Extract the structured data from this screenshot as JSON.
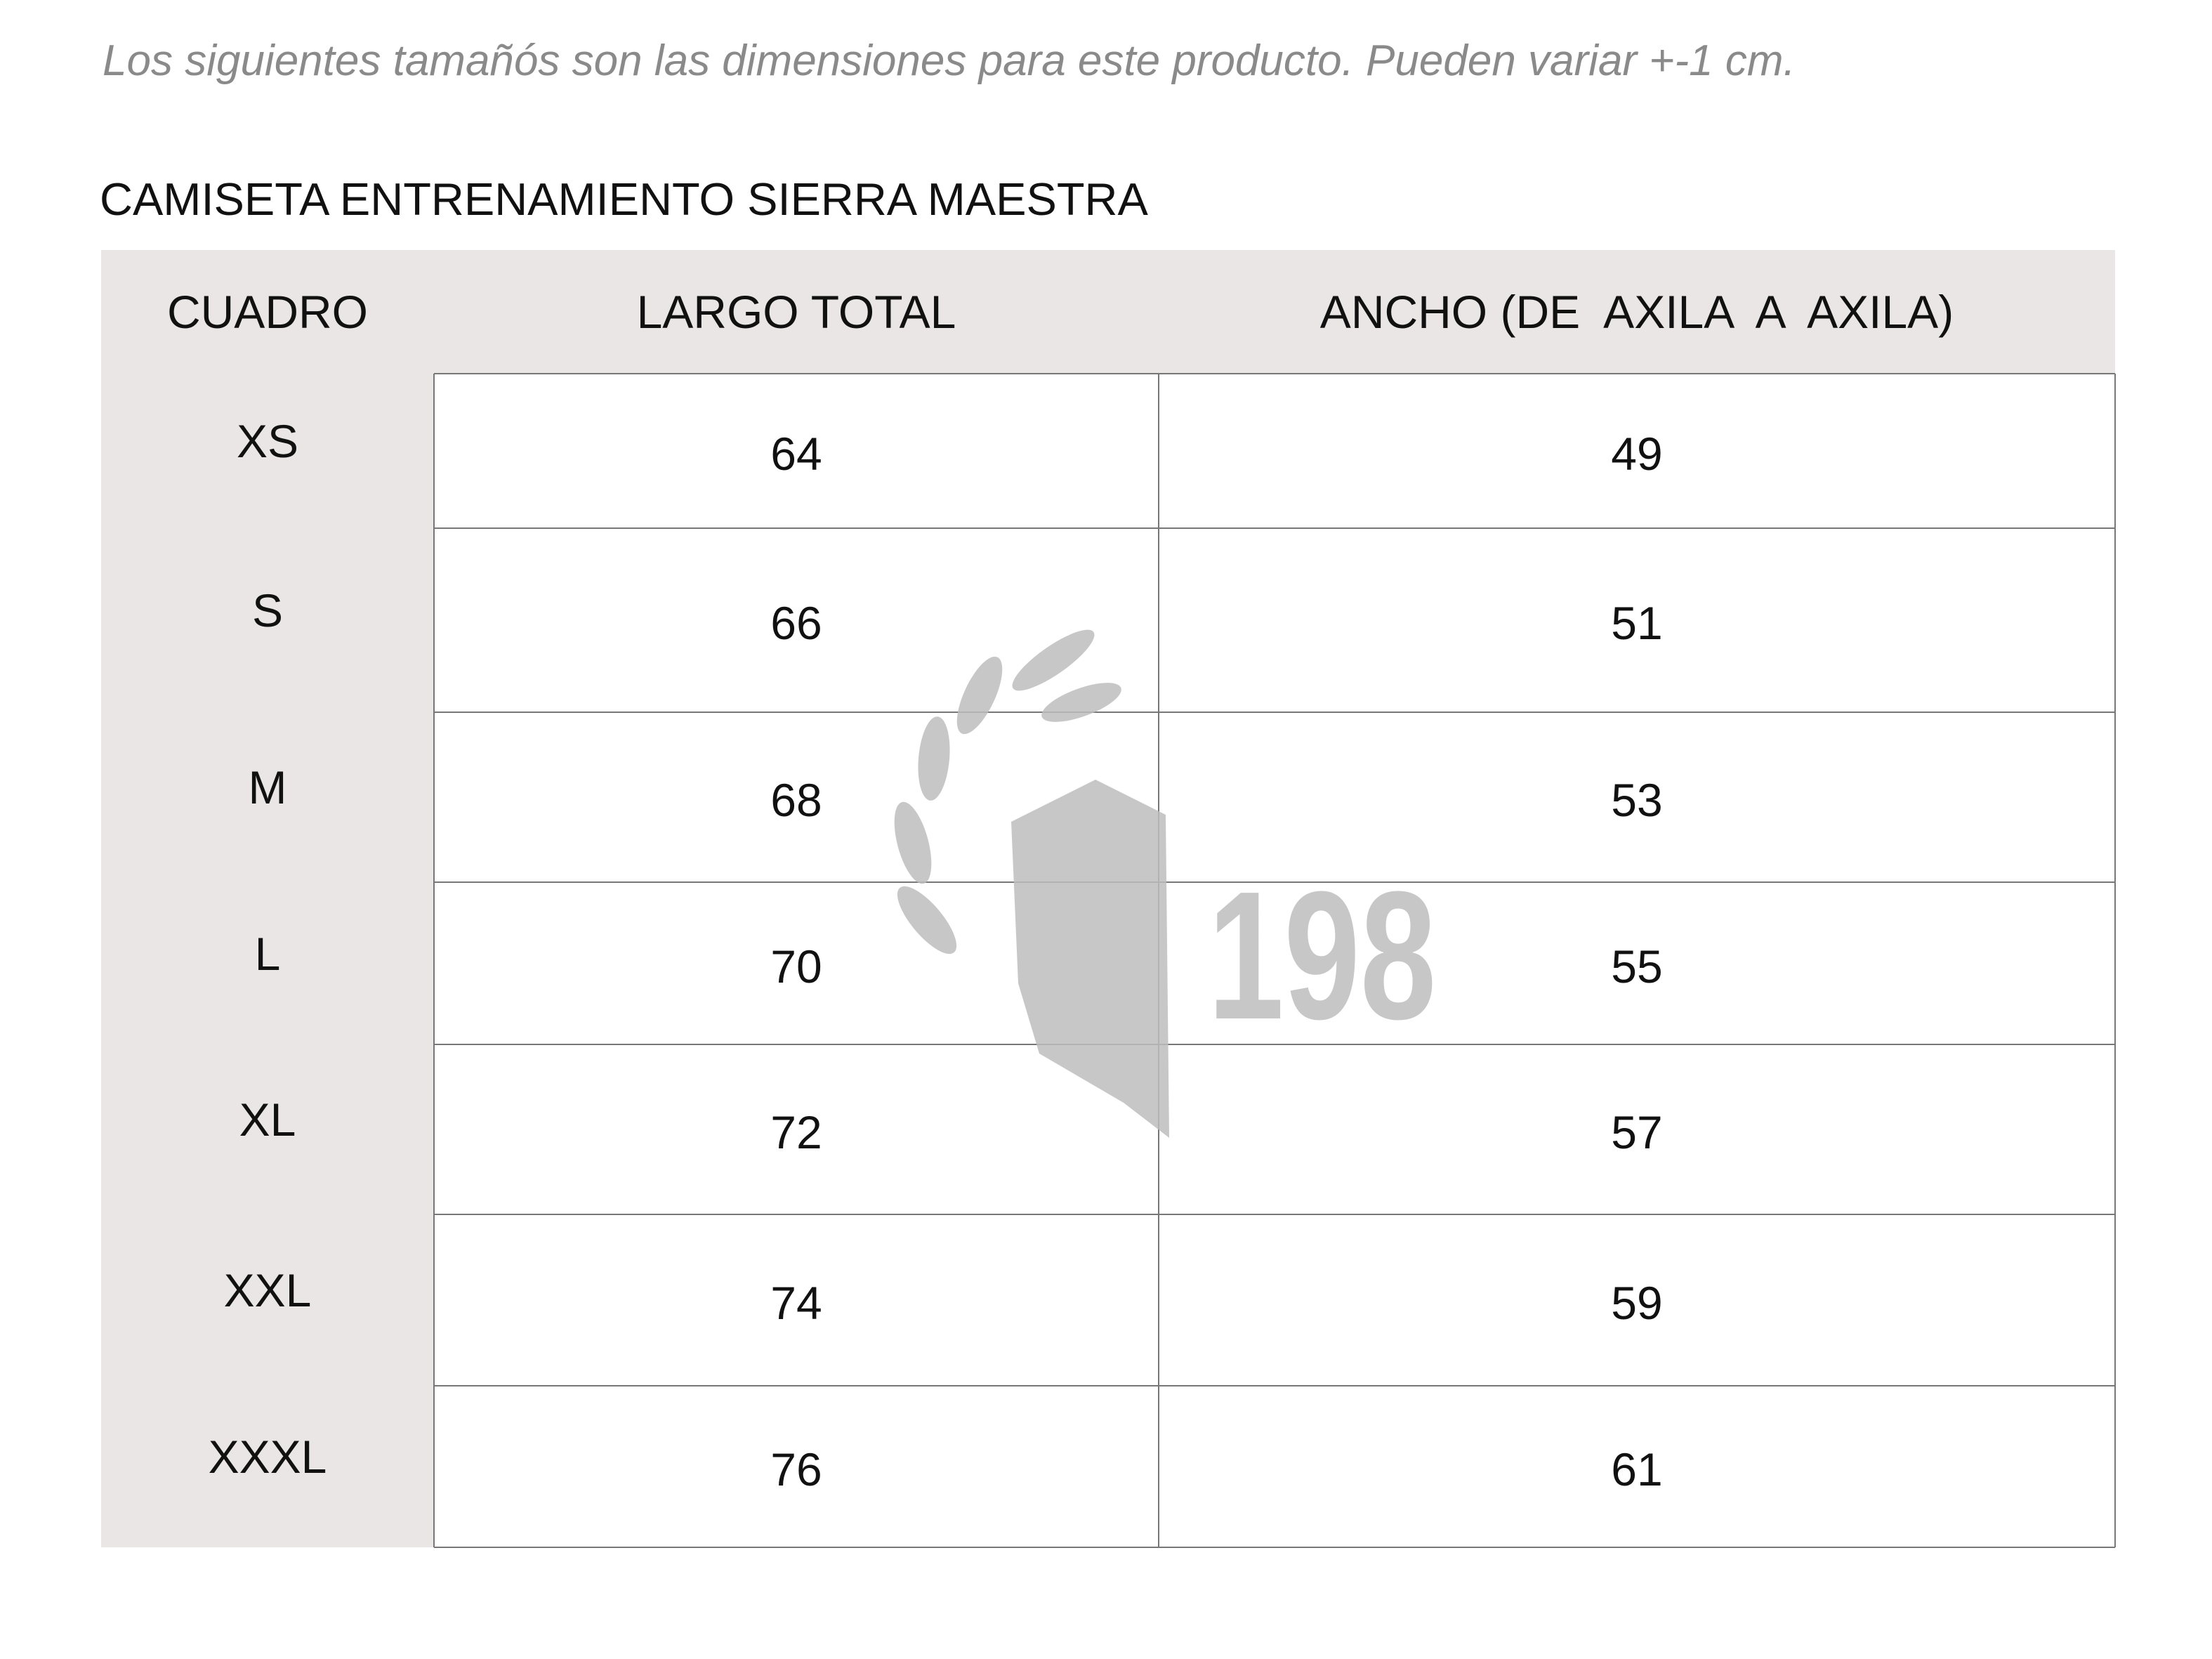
{
  "intro": "Los siguientes tamañós son las dimensiones para este producto. Pueden variar +-1 cm.",
  "title": "CAMISETA ENTRENAMIENTO SIERRA MAESTRA",
  "table": {
    "header": [
      "CUADRO",
      "LARGO TOTAL",
      "ANCHO (DE  AXILA  A  AXILA)"
    ],
    "rows": [
      [
        "XS",
        "64",
        "49"
      ],
      [
        "S",
        "66",
        "51"
      ],
      [
        "M",
        "68",
        "53"
      ],
      [
        "L",
        "70",
        "55"
      ],
      [
        "XL",
        "72",
        "57"
      ],
      [
        "XXL",
        "74",
        "59"
      ],
      [
        "XXXL",
        "76",
        "61"
      ]
    ]
  },
  "watermark": "198"
}
